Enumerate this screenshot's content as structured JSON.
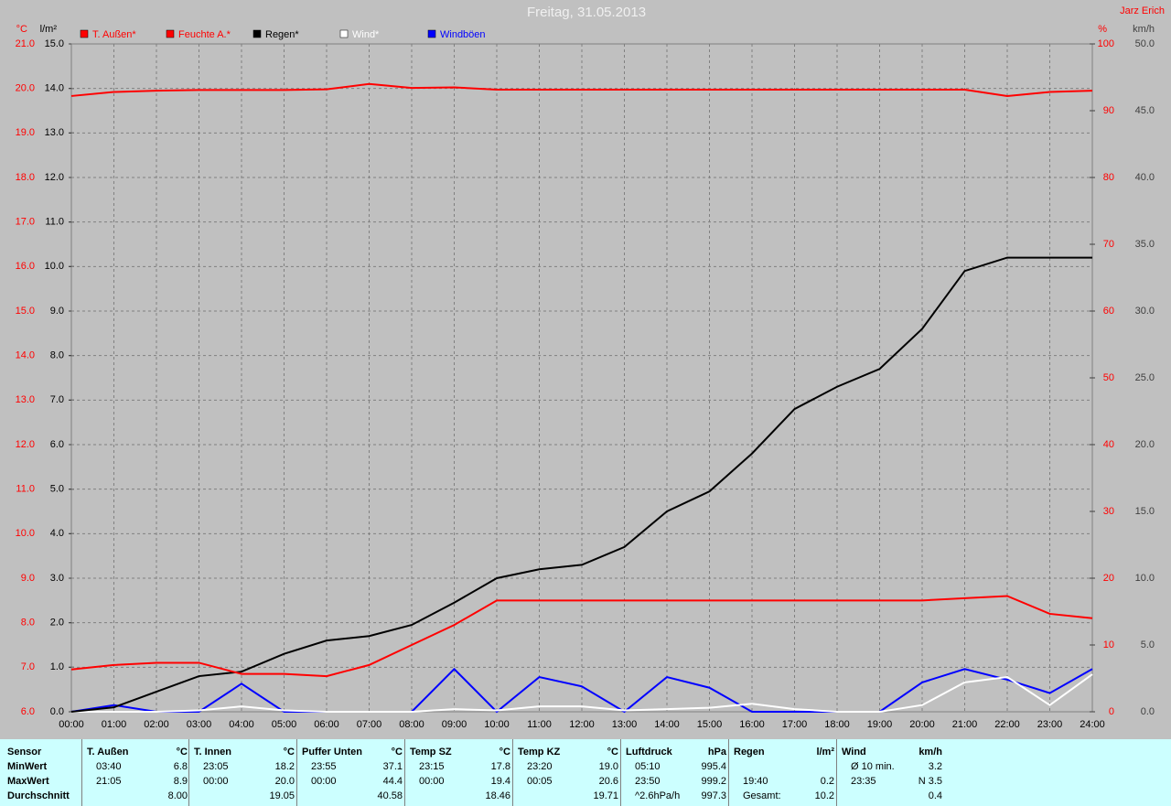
{
  "chart_data": {
    "type": "line",
    "title": "Freitag, 31.05.2013",
    "author": "Jarz Erich",
    "grid": true,
    "categories": [
      "00:00",
      "01:00",
      "02:00",
      "03:00",
      "04:00",
      "05:00",
      "06:00",
      "07:00",
      "08:00",
      "09:00",
      "10:00",
      "11:00",
      "12:00",
      "13:00",
      "14:00",
      "15:00",
      "16:00",
      "17:00",
      "18:00",
      "19:00",
      "20:00",
      "21:00",
      "22:00",
      "23:00",
      "24:00"
    ],
    "axes": [
      {
        "label": "°C",
        "color": "#ff0000",
        "lim": [
          6,
          21
        ],
        "ticks": [
          {
            "value": 6,
            "label": "6.0"
          },
          {
            "value": 7,
            "label": "7.0"
          },
          {
            "value": 8,
            "label": "8.0"
          },
          {
            "value": 9,
            "label": "9.0"
          },
          {
            "value": 10,
            "label": "10.0"
          },
          {
            "value": 11,
            "label": "11.0"
          },
          {
            "value": 12,
            "label": "12.0"
          },
          {
            "value": 13,
            "label": "13.0"
          },
          {
            "value": 14,
            "label": "14.0"
          },
          {
            "value": 15,
            "label": "15.0"
          },
          {
            "value": 16,
            "label": "16.0"
          },
          {
            "value": 17,
            "label": "17.0"
          },
          {
            "value": 18,
            "label": "18.0"
          },
          {
            "value": 19,
            "label": "19.0"
          },
          {
            "value": 20,
            "label": "20.0"
          },
          {
            "value": 21,
            "label": "21.0"
          }
        ]
      },
      {
        "label": "l/m²",
        "color": "#000000",
        "lim": [
          0,
          15
        ],
        "ticks": [
          {
            "value": 0,
            "label": "0.0"
          },
          {
            "value": 1,
            "label": "1.0"
          },
          {
            "value": 2,
            "label": "2.0"
          },
          {
            "value": 3,
            "label": "3.0"
          },
          {
            "value": 4,
            "label": "4.0"
          },
          {
            "value": 5,
            "label": "5.0"
          },
          {
            "value": 6,
            "label": "6.0"
          },
          {
            "value": 7,
            "label": "7.0"
          },
          {
            "value": 8,
            "label": "8.0"
          },
          {
            "value": 9,
            "label": "9.0"
          },
          {
            "value": 10,
            "label": "10.0"
          },
          {
            "value": 11,
            "label": "11.0"
          },
          {
            "value": 12,
            "label": "12.0"
          },
          {
            "value": 13,
            "label": "13.0"
          },
          {
            "value": 14,
            "label": "14.0"
          },
          {
            "value": 15,
            "label": "15.0"
          }
        ]
      },
      {
        "label": "%",
        "color": "#ff0000",
        "lim": [
          0,
          100
        ],
        "ticks": [
          0,
          10,
          20,
          30,
          40,
          50,
          60,
          70,
          80,
          90,
          100
        ]
      },
      {
        "label": "km/h",
        "color": "#404040",
        "lim": [
          0,
          50
        ],
        "ticks": [
          {
            "value": 0,
            "label": "0.0"
          },
          {
            "value": 5,
            "label": "5.0"
          },
          {
            "value": 10,
            "label": "10.0"
          },
          {
            "value": 15,
            "label": "15.0"
          },
          {
            "value": 20,
            "label": "20.0"
          },
          {
            "value": 25,
            "label": "25.0"
          },
          {
            "value": 30,
            "label": "30.0"
          },
          {
            "value": 35,
            "label": "35.0"
          },
          {
            "value": 40,
            "label": "40.0"
          },
          {
            "value": 45,
            "label": "45.0"
          },
          {
            "value": 50,
            "label": "50.0"
          }
        ]
      }
    ],
    "series": [
      {
        "name": "T. Außen*",
        "color": "#ff0000",
        "axis": 0,
        "values": [
          6.95,
          7.05,
          7.1,
          7.1,
          6.85,
          6.85,
          6.8,
          7.05,
          7.5,
          7.95,
          8.5,
          8.5,
          8.5,
          8.5,
          8.5,
          8.5,
          8.5,
          8.5,
          8.5,
          8.5,
          8.5,
          8.55,
          8.6,
          8.2,
          8.1
        ]
      },
      {
        "name": "Feuchte A.*",
        "color": "#ff0000",
        "axis": 2,
        "values": [
          92.2,
          92.8,
          93.0,
          93.1,
          93.1,
          93.1,
          93.2,
          94.0,
          93.4,
          93.5,
          93.15,
          93.15,
          93.15,
          93.15,
          93.15,
          93.15,
          93.15,
          93.15,
          93.15,
          93.15,
          93.15,
          93.15,
          92.2,
          92.8,
          93.0
        ]
      },
      {
        "name": "Regen*",
        "color": "#000000",
        "axis": 1,
        "values": [
          0.0,
          0.1,
          0.45,
          0.8,
          0.9,
          1.3,
          1.6,
          1.7,
          1.95,
          2.45,
          3.0,
          3.2,
          3.3,
          3.7,
          4.5,
          4.95,
          5.8,
          6.8,
          7.3,
          7.7,
          8.6,
          9.9,
          10.2,
          10.2,
          10.2
        ]
      },
      {
        "name": "Wind*",
        "color": "#ffffff",
        "axis": 3,
        "values": [
          0,
          0,
          0,
          0.1,
          0.4,
          0.1,
          0,
          0,
          0,
          0.2,
          0.1,
          0.4,
          0.4,
          0.1,
          0.2,
          0.3,
          0.6,
          0.2,
          0,
          0,
          0.5,
          2.2,
          2.6,
          0.5,
          2.8
        ]
      },
      {
        "name": "Windböen",
        "color": "#0000ff",
        "axis": 3,
        "values": [
          0,
          0.5,
          0,
          0,
          2.1,
          0,
          0,
          0,
          0,
          3.2,
          0,
          2.6,
          1.9,
          0,
          2.6,
          1.8,
          0,
          0,
          0,
          0,
          2.2,
          3.2,
          2.4,
          1.4,
          3.2
        ]
      }
    ]
  },
  "table": {
    "row_labels": [
      "Sensor",
      "MinWert",
      "MaxWert",
      "Durchschnitt"
    ],
    "sections": [
      {
        "name": "T. Außen",
        "unit": "°C",
        "rows": [
          [
            "03:40",
            "6.8"
          ],
          [
            "21:05",
            "8.9"
          ],
          [
            "8.00"
          ]
        ]
      },
      {
        "name": "T. Innen",
        "unit": "°C",
        "rows": [
          [
            "23:05",
            "18.2"
          ],
          [
            "00:00",
            "20.0"
          ],
          [
            "19.05"
          ]
        ]
      },
      {
        "name": "Puffer Unten",
        "unit": "°C",
        "rows": [
          [
            "23:55",
            "37.1"
          ],
          [
            "00:00",
            "44.4"
          ],
          [
            "40.58"
          ]
        ]
      },
      {
        "name": "Temp SZ",
        "unit": "°C",
        "rows": [
          [
            "23:15",
            "17.8"
          ],
          [
            "00:00",
            "19.4"
          ],
          [
            "18.46"
          ]
        ]
      },
      {
        "name": "Temp KZ",
        "unit": "°C",
        "rows": [
          [
            "23:20",
            "19.0"
          ],
          [
            "00:05",
            "20.6"
          ],
          [
            "19.71"
          ]
        ]
      },
      {
        "name": "Luftdruck",
        "unit": "hPa",
        "rows": [
          [
            "05:10",
            "995.4"
          ],
          [
            "23:50",
            "999.2"
          ],
          [
            "^2.6hPa/h",
            "997.3"
          ]
        ]
      },
      {
        "name": "Regen",
        "unit": "l/m²",
        "rows": [
          [],
          [
            "19:40",
            "0.2"
          ],
          [
            "Gesamt:",
            "10.2"
          ]
        ]
      },
      {
        "name": "Wind",
        "unit": "km/h",
        "rows": [
          [
            "Ø 10 min.",
            "3.2"
          ],
          [
            "23:35",
            "N 3.5"
          ],
          [
            "0.4"
          ]
        ]
      }
    ]
  }
}
